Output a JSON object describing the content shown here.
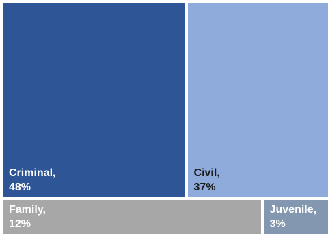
{
  "chart_data": {
    "type": "treemap",
    "categories": [
      "Criminal",
      "Civil",
      "Family",
      "Juvenile"
    ],
    "values": [
      48,
      37,
      12,
      3
    ],
    "labels": [
      {
        "name": "Criminal,",
        "value": "48%"
      },
      {
        "name": "Civil,",
        "value": "37%"
      },
      {
        "name": "Family,",
        "value": "12%"
      },
      {
        "name": "Juvenile,",
        "value": "3%"
      }
    ],
    "colors": [
      "#2e5595",
      "#8eabdc",
      "#a7a7a7",
      "#8497b0"
    ],
    "label_colors": [
      "#ffffff",
      "#1a1a1a",
      "#ffffff",
      "#ffffff"
    ]
  }
}
